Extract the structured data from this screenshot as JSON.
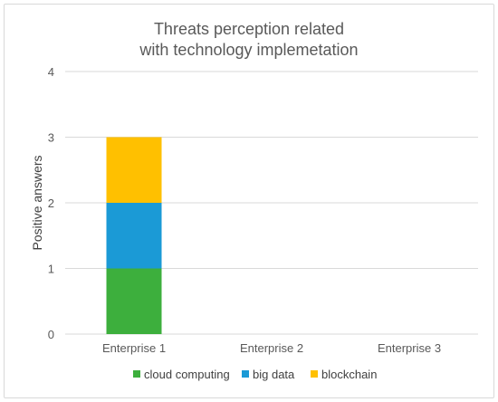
{
  "chart_data": {
    "type": "bar",
    "stacked": true,
    "title_line1": "Threats perception related",
    "title_line2": "with technology implemetation",
    "xlabel": "",
    "ylabel": "Positive answers",
    "ylim": [
      0,
      4
    ],
    "yticks": [
      "0",
      "1",
      "2",
      "3",
      "4"
    ],
    "grid": true,
    "legend_position": "bottom",
    "categories": [
      "Enterprise 1",
      "Enterprise 2",
      "Enterprise 3"
    ],
    "series": [
      {
        "name": "cloud computing",
        "color": "#3daf3d",
        "values": [
          1,
          0,
          0
        ]
      },
      {
        "name": "big data",
        "color": "#1b9ad6",
        "values": [
          1,
          0,
          0
        ]
      },
      {
        "name": "blockchain",
        "color": "#ffc000",
        "values": [
          1,
          0,
          0
        ]
      }
    ]
  }
}
